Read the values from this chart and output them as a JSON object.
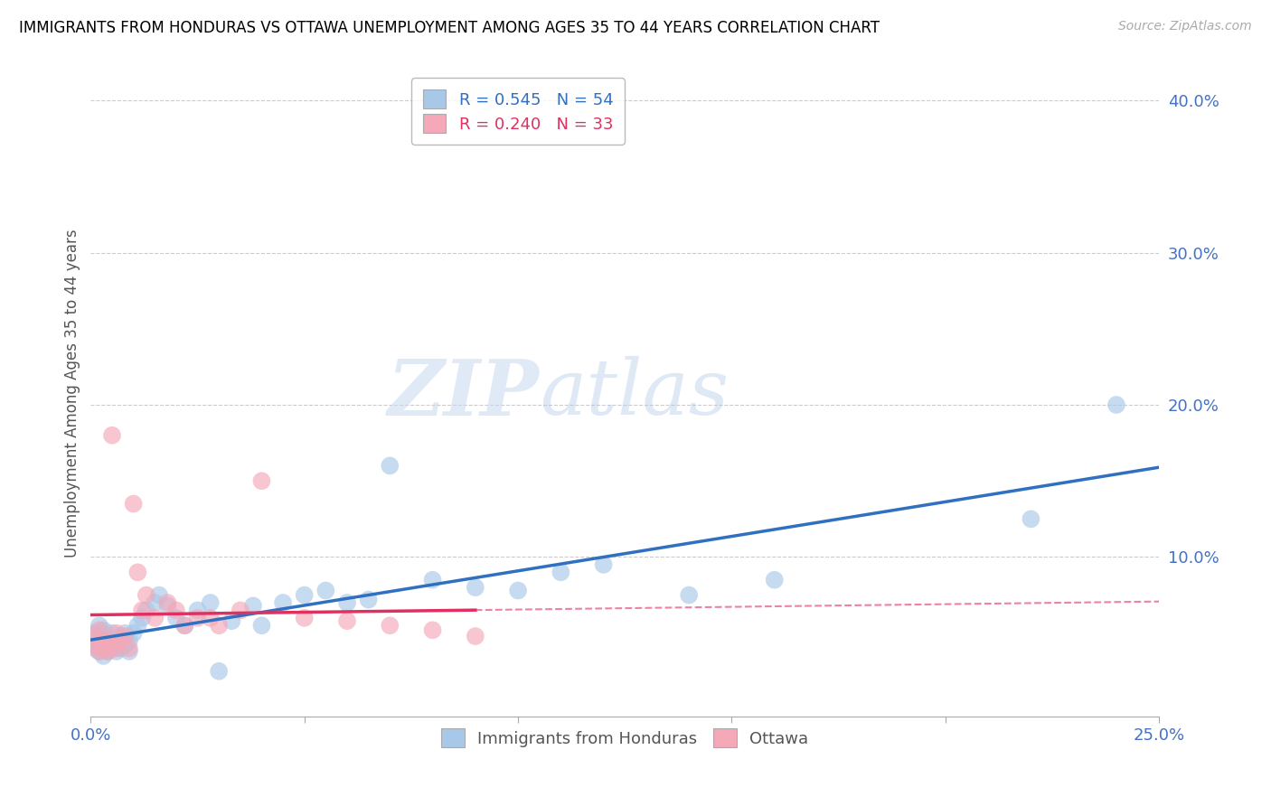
{
  "title": "IMMIGRANTS FROM HONDURAS VS OTTAWA UNEMPLOYMENT AMONG AGES 35 TO 44 YEARS CORRELATION CHART",
  "source": "Source: ZipAtlas.com",
  "ylabel": "Unemployment Among Ages 35 to 44 years",
  "xlim": [
    0.0,
    0.25
  ],
  "ylim": [
    -0.005,
    0.42
  ],
  "xticks": [
    0.0,
    0.05,
    0.1,
    0.15,
    0.2,
    0.25
  ],
  "yticks": [
    0.1,
    0.2,
    0.3,
    0.4
  ],
  "blue_R": 0.545,
  "blue_N": 54,
  "pink_R": 0.24,
  "pink_N": 33,
  "blue_color": "#a8c8e8",
  "pink_color": "#f4a8b8",
  "blue_line_color": "#3070c0",
  "pink_line_color": "#e03060",
  "legend_label_blue": "Immigrants from Honduras",
  "legend_label_pink": "Ottawa",
  "watermark_zip": "ZIP",
  "watermark_atlas": "atlas",
  "blue_points_x": [
    0.001,
    0.001,
    0.001,
    0.002,
    0.002,
    0.002,
    0.003,
    0.003,
    0.003,
    0.003,
    0.004,
    0.004,
    0.004,
    0.005,
    0.005,
    0.005,
    0.006,
    0.006,
    0.007,
    0.007,
    0.008,
    0.008,
    0.009,
    0.009,
    0.01,
    0.011,
    0.012,
    0.013,
    0.015,
    0.016,
    0.018,
    0.02,
    0.022,
    0.025,
    0.028,
    0.03,
    0.033,
    0.038,
    0.04,
    0.045,
    0.05,
    0.055,
    0.06,
    0.065,
    0.07,
    0.08,
    0.09,
    0.1,
    0.11,
    0.12,
    0.14,
    0.16,
    0.22,
    0.24
  ],
  "blue_points_y": [
    0.04,
    0.045,
    0.05,
    0.038,
    0.042,
    0.055,
    0.035,
    0.04,
    0.045,
    0.052,
    0.038,
    0.042,
    0.048,
    0.04,
    0.044,
    0.05,
    0.038,
    0.046,
    0.04,
    0.048,
    0.042,
    0.05,
    0.038,
    0.045,
    0.05,
    0.055,
    0.06,
    0.065,
    0.07,
    0.075,
    0.068,
    0.06,
    0.055,
    0.065,
    0.07,
    0.025,
    0.058,
    0.068,
    0.055,
    0.07,
    0.075,
    0.078,
    0.07,
    0.072,
    0.16,
    0.085,
    0.08,
    0.078,
    0.09,
    0.095,
    0.075,
    0.085,
    0.125,
    0.2
  ],
  "pink_points_x": [
    0.001,
    0.001,
    0.002,
    0.002,
    0.003,
    0.003,
    0.004,
    0.004,
    0.005,
    0.005,
    0.006,
    0.006,
    0.007,
    0.008,
    0.009,
    0.01,
    0.011,
    0.012,
    0.013,
    0.015,
    0.018,
    0.02,
    0.022,
    0.025,
    0.028,
    0.03,
    0.035,
    0.04,
    0.05,
    0.06,
    0.07,
    0.08,
    0.09
  ],
  "pink_points_y": [
    0.042,
    0.048,
    0.038,
    0.052,
    0.04,
    0.045,
    0.038,
    0.044,
    0.042,
    0.18,
    0.04,
    0.05,
    0.045,
    0.048,
    0.04,
    0.135,
    0.09,
    0.065,
    0.075,
    0.06,
    0.07,
    0.065,
    0.055,
    0.06,
    0.06,
    0.055,
    0.065,
    0.15,
    0.06,
    0.058,
    0.055,
    0.052,
    0.048
  ]
}
